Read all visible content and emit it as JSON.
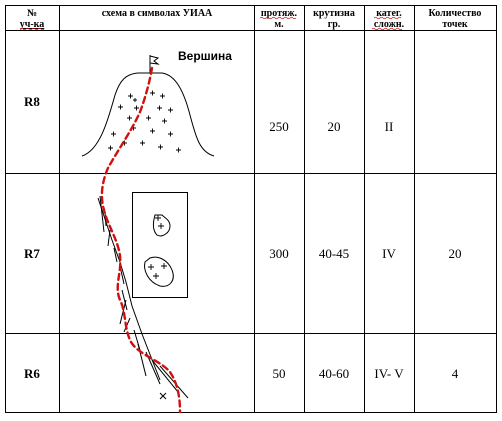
{
  "header": {
    "col_num_line1": "№",
    "col_num_line2": "уч-ка",
    "col_scheme": "схема в символах УИАА",
    "col_length_line1": "протяж.",
    "col_length_line2": "м.",
    "col_steep_line1": "крутизна",
    "col_steep_line2": "гр.",
    "col_cat_line1": "катег.",
    "col_cat_line2": "сложн.",
    "col_points_line1": "Количество",
    "col_points_line2": "точек"
  },
  "scheme": {
    "summit_label": "Вершина"
  },
  "rows": [
    {
      "id": "R8",
      "length": "250",
      "steepness": "20",
      "category": "II",
      "points": ""
    },
    {
      "id": "R7",
      "length": "300",
      "steepness": "40-45",
      "category": "IV",
      "points": "20"
    },
    {
      "id": "R6",
      "length": "50",
      "steepness": "40-60",
      "category": "IV- V",
      "points": "4"
    }
  ],
  "colors": {
    "route": "#d01010",
    "lines": "#000000",
    "spellcheck_underline": "#d01010"
  }
}
